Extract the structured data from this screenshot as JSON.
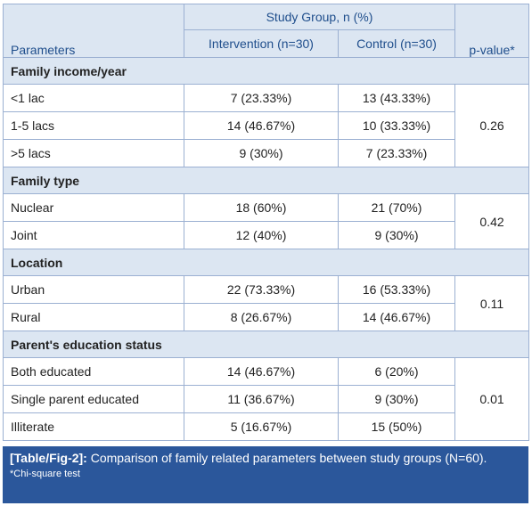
{
  "header": {
    "parameters": "Parameters",
    "study_group": "Study Group, n (%)",
    "intervention": "Intervention (n=30)",
    "control": "Control (n=30)",
    "pvalue": "p-value*"
  },
  "sections": [
    {
      "title": "Family income/year",
      "pvalue": "0.26",
      "rows": [
        {
          "label": "<1 lac",
          "intervention": "7 (23.33%)",
          "control": "13 (43.33%)"
        },
        {
          "label": "1-5 lacs",
          "intervention": "14 (46.67%)",
          "control": "10 (33.33%)"
        },
        {
          "label": ">5 lacs",
          "intervention": "9 (30%)",
          "control": "7 (23.33%)"
        }
      ]
    },
    {
      "title": "Family type",
      "pvalue": "0.42",
      "rows": [
        {
          "label": "Nuclear",
          "intervention": "18 (60%)",
          "control": "21 (70%)"
        },
        {
          "label": "Joint",
          "intervention": "12 (40%)",
          "control": "9 (30%)"
        }
      ]
    },
    {
      "title": "Location",
      "pvalue": "0.11",
      "rows": [
        {
          "label": "Urban",
          "intervention": "22 (73.33%)",
          "control": "16 (53.33%)"
        },
        {
          "label": "Rural",
          "intervention": "8 (26.67%)",
          "control": "14 (46.67%)"
        }
      ]
    },
    {
      "title": "Parent's education status",
      "pvalue": "0.01",
      "rows": [
        {
          "label": "Both educated",
          "intervention": "14 (46.67%)",
          "control": "6 (20%)"
        },
        {
          "label": "Single parent educated",
          "intervention": "11 (36.67%)",
          "control": "9 (30%)"
        },
        {
          "label": "Illiterate",
          "intervention": "5 (16.67%)",
          "control": "15 (50%)"
        }
      ]
    }
  ],
  "caption": {
    "label": "[Table/Fig-2]:",
    "text": " Comparison of family related parameters between study groups (N=60).",
    "footnote": "*Chi-square test"
  },
  "colors": {
    "header_bg": "#dce6f2",
    "header_text": "#1f4e8c",
    "border": "#9bb0d2",
    "caption_bg": "#2b579b"
  }
}
